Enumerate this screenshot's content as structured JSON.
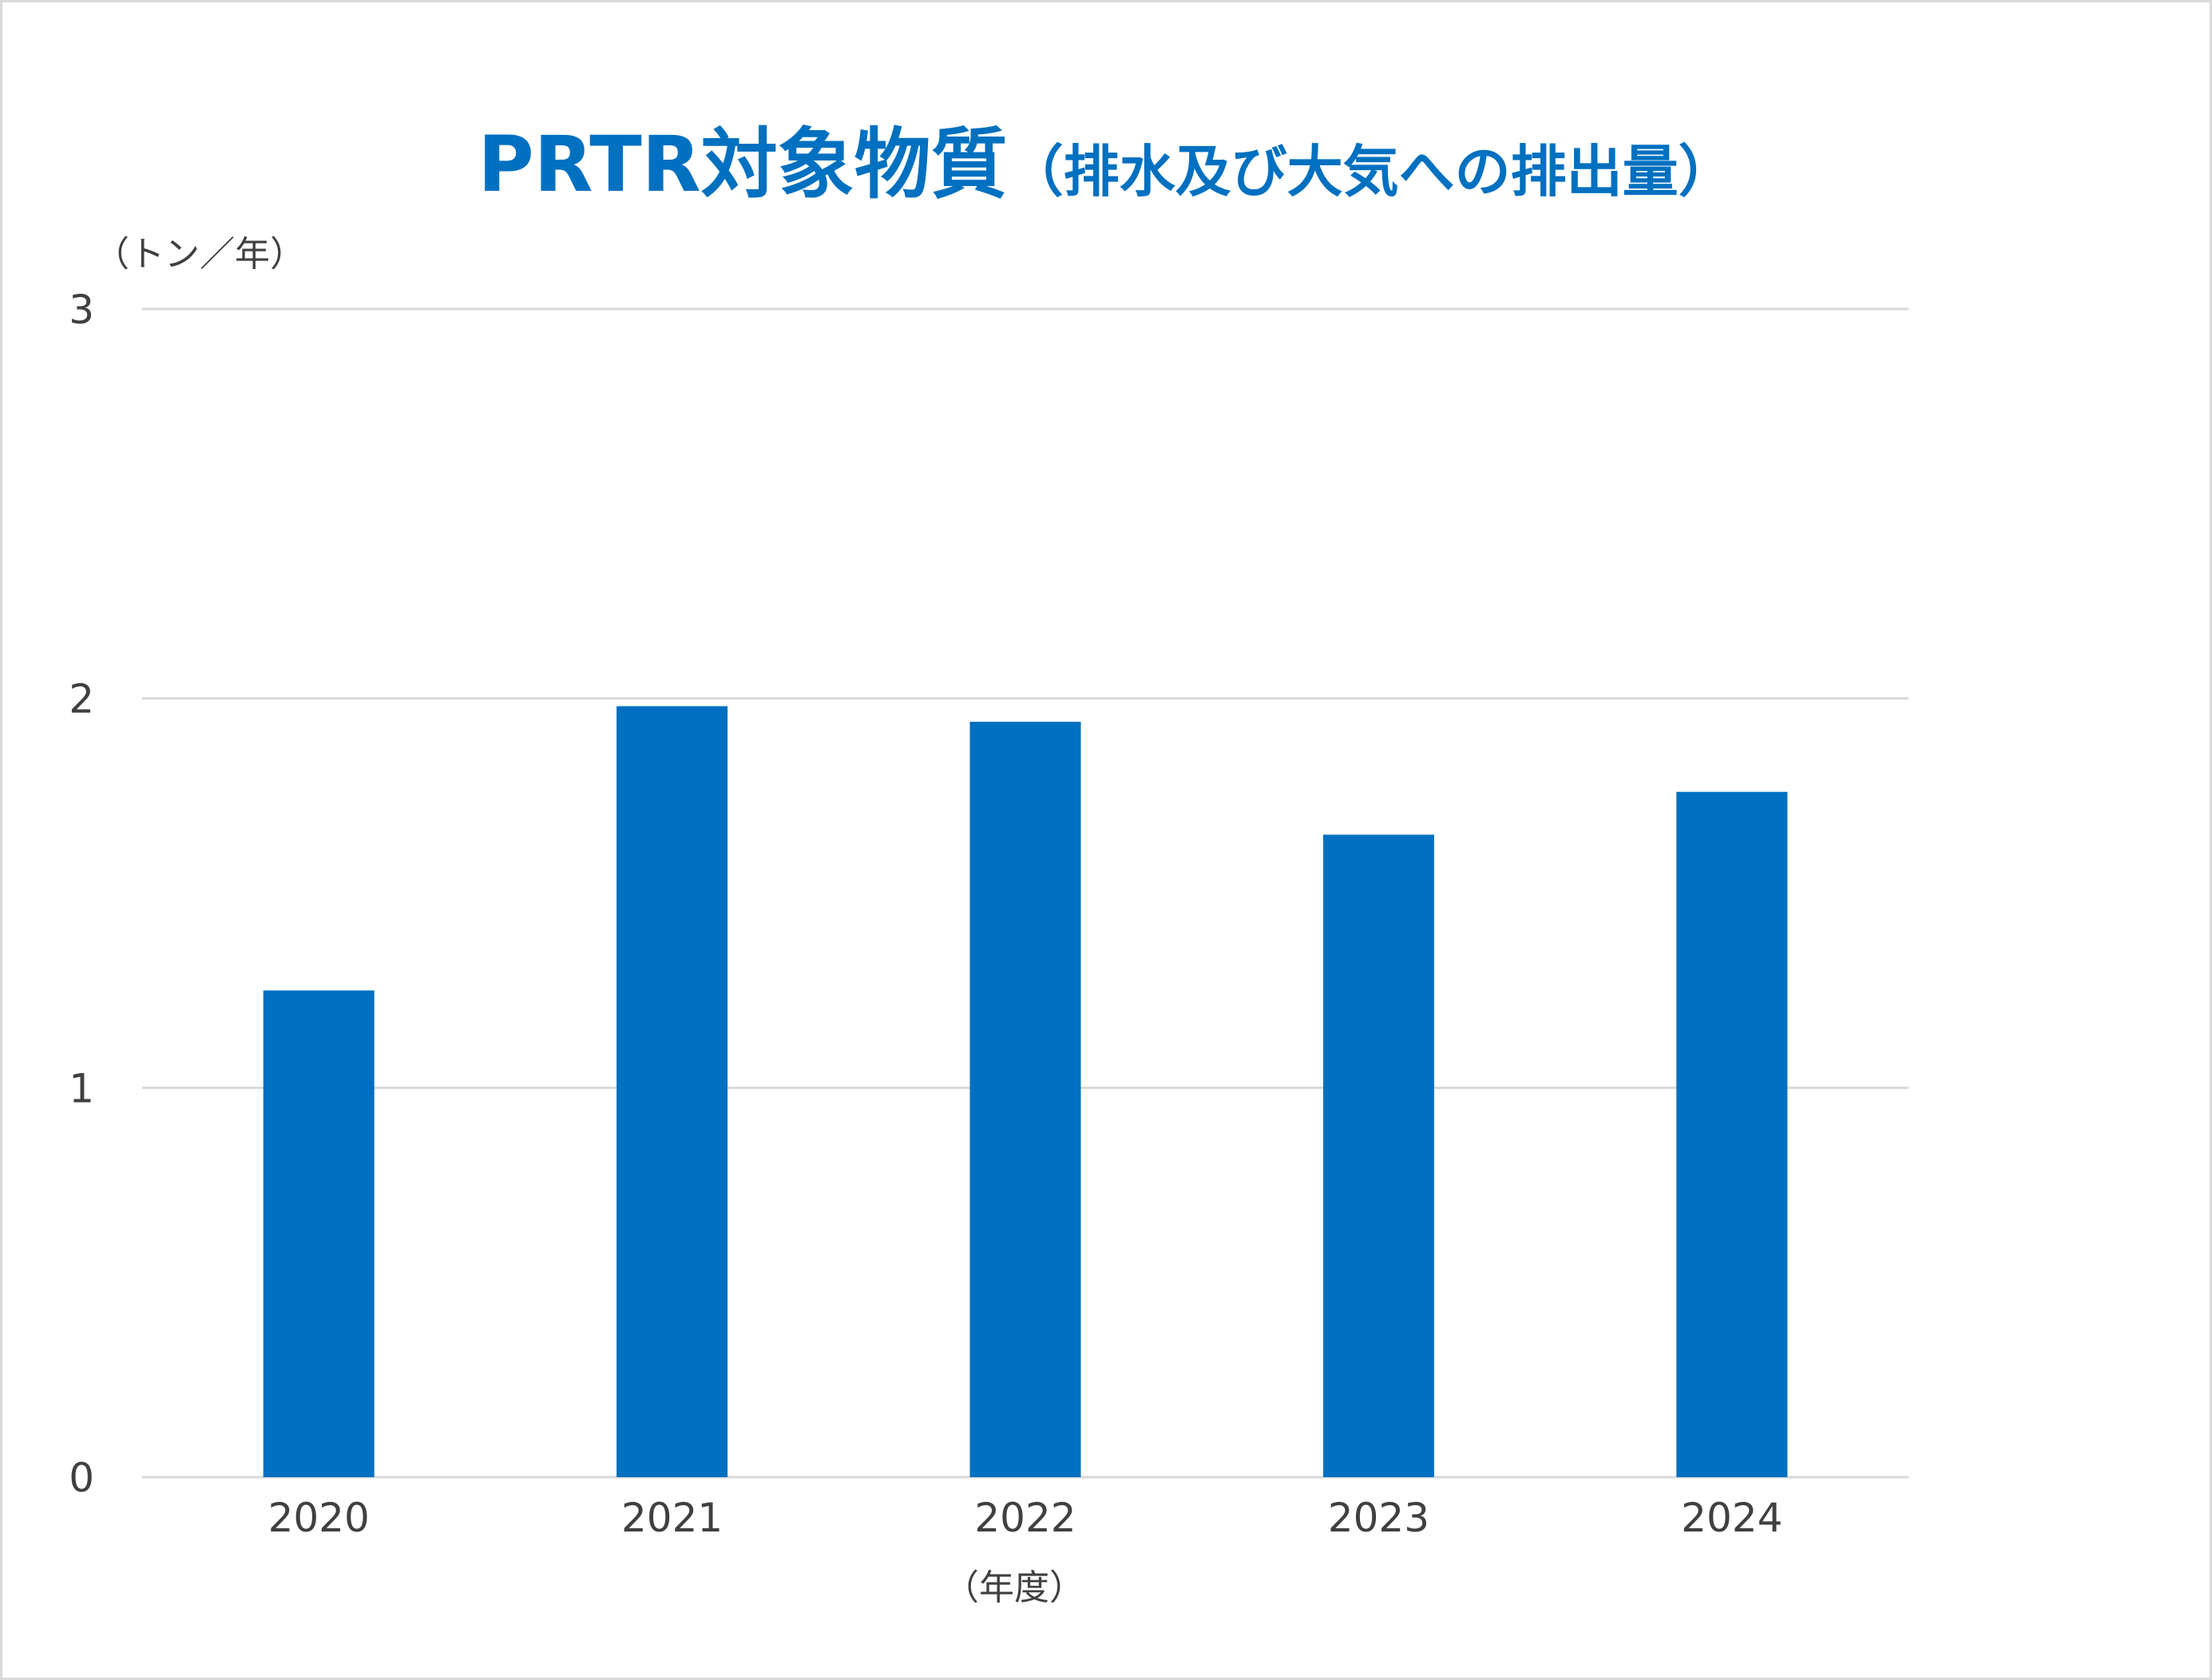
{
  "chart_data": {
    "type": "bar",
    "title": "PRTR対象物質",
    "subtitle": "（排水及び大気への排出量）",
    "ylabel": "（トン／年）",
    "xlabel": "（年度）",
    "categories": [
      "2020",
      "2021",
      "2022",
      "2023",
      "2024"
    ],
    "values": [
      1.25,
      1.98,
      1.94,
      1.65,
      1.76
    ],
    "ylim": [
      0,
      3
    ],
    "yticks": [
      "0",
      "1",
      "2",
      "3"
    ],
    "grid": true,
    "legend": "none",
    "bar_color": "#0070c0",
    "grid_color": "#d9d9d9"
  }
}
